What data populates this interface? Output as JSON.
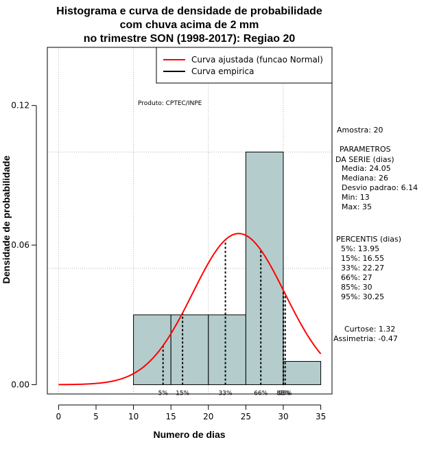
{
  "chart_data": {
    "type": "histogram",
    "title_lines": [
      "Histograma e curva de densidade de probabilidade",
      "com chuva acima de 2 mm",
      "no trimestre SON (1998-2017): Regiao 20"
    ],
    "xlabel": "Numero de dias",
    "ylabel": "Densidade de probabilidade",
    "xlim": [
      -1.5,
      36.5
    ],
    "ylim": [
      -0.004,
      0.145
    ],
    "x_ticks": [
      0,
      5,
      10,
      15,
      20,
      25,
      30,
      35
    ],
    "x_tick_labels": [
      "0",
      "5",
      "10",
      "15",
      "20",
      "25",
      "30",
      "35"
    ],
    "y_ticks": [
      0.0,
      0.06,
      0.12
    ],
    "y_tick_labels": [
      "0.00",
      "0.06",
      "0.12"
    ],
    "grid_x": [
      0,
      10,
      20,
      30
    ],
    "grid_y": [
      0.05,
      0.1
    ],
    "bins": [
      {
        "x0": 10,
        "x1": 15,
        "density": 0.03
      },
      {
        "x0": 15,
        "x1": 20,
        "density": 0.03
      },
      {
        "x0": 20,
        "x1": 25,
        "density": 0.03
      },
      {
        "x0": 25,
        "x1": 30,
        "density": 0.1
      },
      {
        "x0": 30,
        "x1": 35,
        "density": 0.01
      }
    ],
    "bar_color": "#b4cccc",
    "normal_curve": {
      "mean": 24.05,
      "sd": 6.14,
      "color": "#ff0000",
      "x_from": 0,
      "x_to": 35
    },
    "percentiles": [
      {
        "label": "5%",
        "value": 13.95
      },
      {
        "label": "15%",
        "value": 16.55
      },
      {
        "label": "33%",
        "value": 22.27
      },
      {
        "label": "66%",
        "value": 27
      },
      {
        "label": "85%",
        "value": 30
      },
      {
        "label": "95%",
        "value": 30.25
      }
    ],
    "legend": [
      {
        "label": "Curva ajustada (funcao Normal)",
        "color": "#ff0000"
      },
      {
        "label": "Curva empirica",
        "color": "#000000"
      }
    ],
    "legend_position": "top-right",
    "product_label": "Produto: CPTEC/INPE"
  },
  "stats": {
    "amostra": "Amostra: 20",
    "param_title_1": "PARAMETROS",
    "param_title_2": "DA SERIE (dias)",
    "media": "Media: 24.05",
    "mediana": "Mediana: 26",
    "desvio": "Desvio padrao: 6.14",
    "min": "Min: 13",
    "max": "Max: 35",
    "percentis_title": "PERCENTIS (dias)",
    "p5": "5%: 13.95",
    "p15": "15%: 16.55",
    "p33": "33%: 22.27",
    "p66": "66%: 27",
    "p85": "85%: 30",
    "p95": "95%: 30.25",
    "curtose": "Curtose: 1.32",
    "assimetria": "Assimetria: -0.47"
  }
}
